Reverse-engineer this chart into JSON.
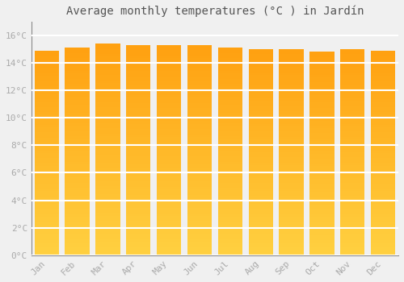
{
  "title": "Average monthly temperatures (°C ) in Jardín",
  "months": [
    "Jan",
    "Feb",
    "Mar",
    "Apr",
    "May",
    "Jun",
    "Jul",
    "Aug",
    "Sep",
    "Oct",
    "Nov",
    "Dec"
  ],
  "values": [
    14.9,
    15.1,
    15.4,
    15.3,
    15.3,
    15.3,
    15.1,
    15.0,
    15.0,
    14.8,
    15.0,
    14.9
  ],
  "bar_color_bottom": "#FFD040",
  "bar_color_top": "#FFA010",
  "ylim": [
    0,
    17
  ],
  "yticks": [
    0,
    2,
    4,
    6,
    8,
    10,
    12,
    14,
    16
  ],
  "ytick_labels": [
    "0°C",
    "2°C",
    "4°C",
    "6°C",
    "8°C",
    "10°C",
    "12°C",
    "14°C",
    "16°C"
  ],
  "background_color": "#f0f0f0",
  "grid_color": "#ffffff",
  "title_fontsize": 10,
  "tick_fontsize": 8,
  "bar_width": 0.8
}
